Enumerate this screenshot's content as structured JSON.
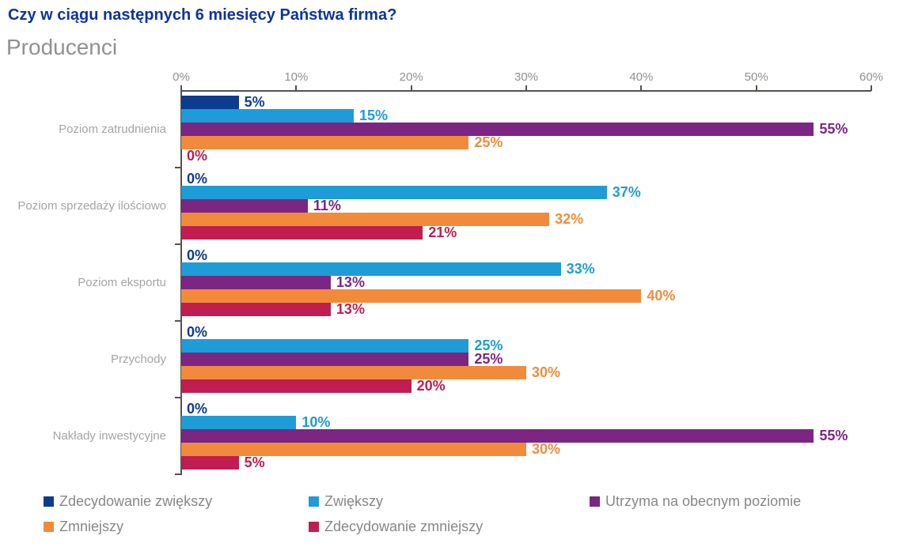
{
  "header": {
    "title": "Czy w ciągu następnych 6 miesięcy Państwa firma?",
    "subtitle": "Producenci"
  },
  "colors": {
    "title_blue": "#0b34a0",
    "axis_line": "#55524e",
    "category_label_gray": "#a2a4a7",
    "tick_label_gray": "#8e9093",
    "legend_text_gray": "#85878a"
  },
  "chart_data": {
    "type": "bar",
    "orientation": "horizontal",
    "title": "Czy w ciągu następnych 6 miesięcy Państwa firma?",
    "subtitle": "Producenci",
    "categories": [
      "Poziom zatrudnienia",
      "Poziom sprzedaży ilościowo",
      "Poziom eksportu",
      "Przychody",
      "Nakłady inwestycyjne"
    ],
    "series": [
      {
        "name": "Zdecydowanie zwiększy",
        "color": "#0d3b8f",
        "values": [
          5,
          0,
          0,
          0,
          0
        ]
      },
      {
        "name": "Zwiększy",
        "color": "#1e9cd8",
        "values": [
          15,
          37,
          33,
          25,
          10
        ]
      },
      {
        "name": "Utrzyma na obecnym poziomie",
        "color": "#7b2682",
        "values": [
          55,
          11,
          13,
          25,
          55
        ]
      },
      {
        "name": "Zmniejszy",
        "color": "#f18b3b",
        "values": [
          25,
          32,
          40,
          30,
          30
        ]
      },
      {
        "name": "Zdecydowanie zmniejszy",
        "color": "#c01d50",
        "values": [
          0,
          21,
          13,
          20,
          5
        ]
      }
    ],
    "x_ticks": [
      "0%",
      "10%",
      "20%",
      "30%",
      "40%",
      "50%",
      "60%"
    ],
    "xlim": [
      0,
      60
    ],
    "value_label_suffix": "%",
    "grid": false,
    "legend_position": "bottom"
  }
}
